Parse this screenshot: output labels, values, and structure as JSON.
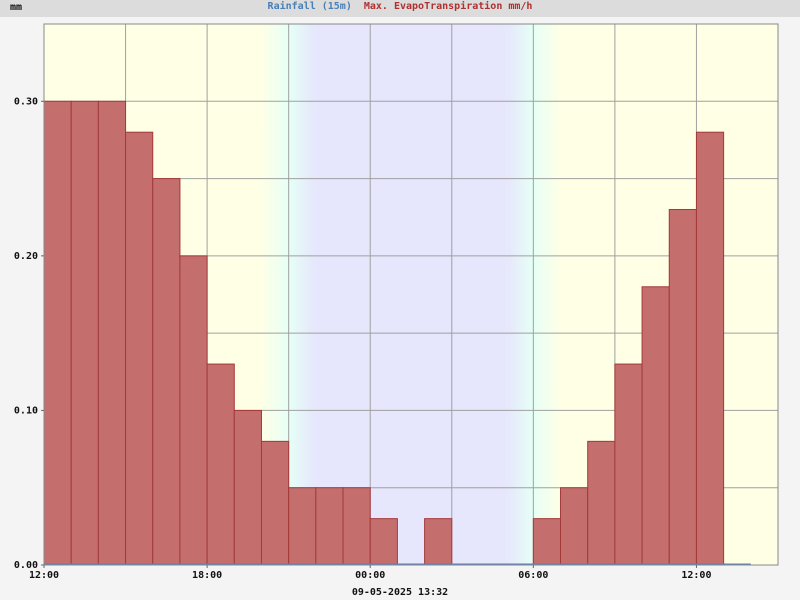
{
  "header": {
    "unit_label": "mm",
    "title_rain": "Rainfall (15m)",
    "title_et": "Max. EvapoTranspiration mm/h"
  },
  "footer": {
    "timestamp": "09-05-2025 13:32"
  },
  "colors": {
    "day_bg": "#ffffe6",
    "night_bg": "#e6e6fc",
    "bar_fill": "#c46e6e",
    "bar_stroke": "#a33a3a",
    "grid": "#a0a0a0",
    "rain_title": "#4a7fb5",
    "et_title": "#b03030",
    "header_bg": "#dcdcdc"
  },
  "chart_data": {
    "type": "bar",
    "title": "Rainfall (15m) Max. EvapoTranspiration mm/h",
    "ylabel": "mm",
    "xlabel": "",
    "ylim": [
      0,
      0.35
    ],
    "xlim_hours": [
      0,
      27
    ],
    "y_ticks": [
      "0.00",
      "0.10",
      "0.20",
      "0.30"
    ],
    "x_tick_labels": [
      "12:00",
      "18:00",
      "00:00",
      "06:00",
      "12:00"
    ],
    "series": [
      {
        "values": [
          0.3,
          0.3,
          0.3,
          0.28,
          0.25,
          0.2,
          0.13,
          0.1,
          0.08,
          0.05,
          0.05,
          0.05,
          0.03,
          0,
          0.03,
          0,
          0,
          0,
          0.03,
          0.05,
          0.08,
          0.13,
          0.18,
          0.23,
          0.28,
          0
        ]
      }
    ],
    "night_shading_hours": [
      9,
      18
    ],
    "grid": true
  }
}
